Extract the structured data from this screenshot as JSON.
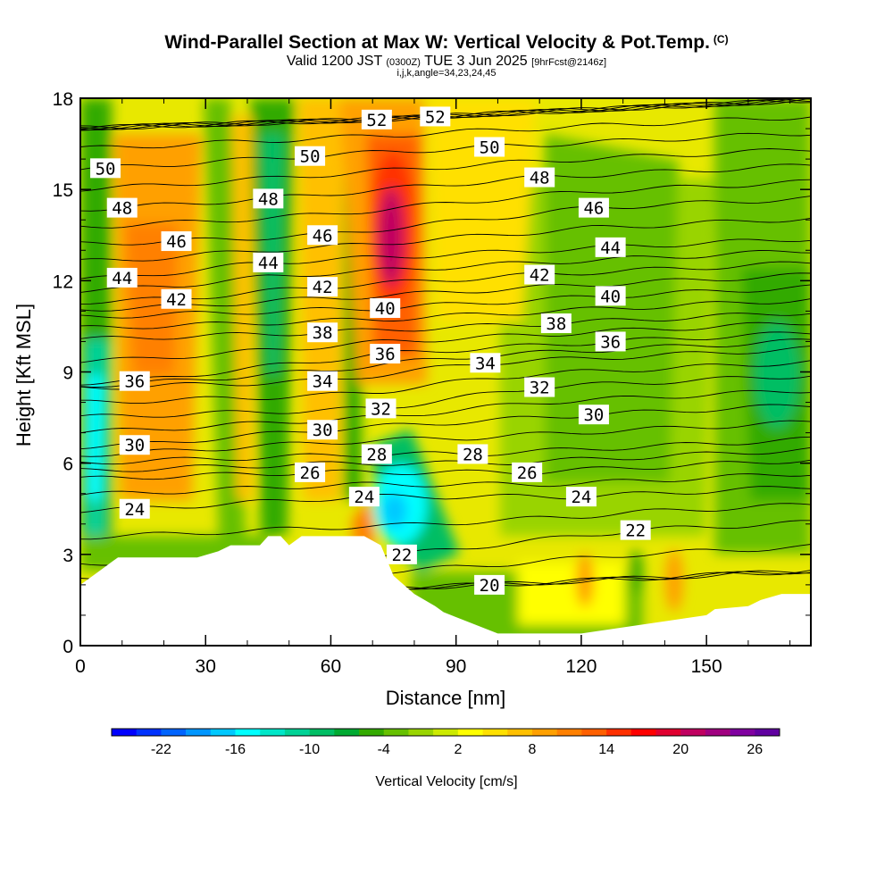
{
  "header": {
    "title": "Wind-Parallel Section at Max W: Vertical Velocity & Pot.Temp.",
    "copyright": "(C)",
    "valid_prefix": "Valid 1200 JST",
    "valid_utc": "(0300Z)",
    "valid_date": "TUE 3 Jun 2025",
    "forecast": "[9hrFcst@2146z]",
    "indices": "i,j,k,angle=34,23,24,45"
  },
  "chart_data": {
    "type": "heatmap",
    "xlabel": "Distance [nm]",
    "ylabel": "Height [Kft MSL]",
    "xlim": [
      0,
      175
    ],
    "ylim": [
      0,
      18
    ],
    "x_ticks": [
      0,
      30,
      60,
      90,
      120,
      150
    ],
    "y_ticks": [
      0,
      3,
      6,
      9,
      12,
      15,
      18
    ],
    "colorbar": {
      "label": "Vertical Velocity [cm/s]",
      "tick_labels": [
        -22,
        -16,
        -10,
        -4,
        2,
        8,
        14,
        20,
        26
      ],
      "colors": [
        "#0000ff",
        "#0032ff",
        "#0064ff",
        "#0096ff",
        "#00c8ff",
        "#00ffff",
        "#00e6c8",
        "#00d296",
        "#00be64",
        "#00aa32",
        "#33aa00",
        "#66c000",
        "#99d400",
        "#ccea00",
        "#ffff00",
        "#ffe000",
        "#ffc000",
        "#ffa000",
        "#ff8000",
        "#ff6000",
        "#ff3000",
        "#ff0000",
        "#e00030",
        "#c00060",
        "#a00080",
        "#8000a0",
        "#6000a0"
      ]
    },
    "theta_contours": {
      "interval": 1,
      "labels": [
        {
          "value": 52,
          "x": 71,
          "y": 17.3
        },
        {
          "value": 52,
          "x": 85,
          "y": 17.4
        },
        {
          "value": 50,
          "x": 6,
          "y": 15.7
        },
        {
          "value": 50,
          "x": 55,
          "y": 16.1
        },
        {
          "value": 50,
          "x": 98,
          "y": 16.4
        },
        {
          "value": 48,
          "x": 10,
          "y": 14.4
        },
        {
          "value": 48,
          "x": 45,
          "y": 14.7
        },
        {
          "value": 48,
          "x": 110,
          "y": 15.4
        },
        {
          "value": 46,
          "x": 23,
          "y": 13.3
        },
        {
          "value": 46,
          "x": 58,
          "y": 13.5
        },
        {
          "value": 46,
          "x": 123,
          "y": 14.4
        },
        {
          "value": 44,
          "x": 10,
          "y": 12.1
        },
        {
          "value": 44,
          "x": 45,
          "y": 12.6
        },
        {
          "value": 44,
          "x": 127,
          "y": 13.1
        },
        {
          "value": 42,
          "x": 23,
          "y": 11.4
        },
        {
          "value": 42,
          "x": 58,
          "y": 11.8
        },
        {
          "value": 42,
          "x": 110,
          "y": 12.2
        },
        {
          "value": 40,
          "x": 73,
          "y": 11.1
        },
        {
          "value": 40,
          "x": 127,
          "y": 11.5
        },
        {
          "value": 38,
          "x": 58,
          "y": 10.3
        },
        {
          "value": 38,
          "x": 114,
          "y": 10.6
        },
        {
          "value": 36,
          "x": 13,
          "y": 8.7
        },
        {
          "value": 36,
          "x": 73,
          "y": 9.6
        },
        {
          "value": 36,
          "x": 127,
          "y": 10.0
        },
        {
          "value": 34,
          "x": 58,
          "y": 8.7
        },
        {
          "value": 34,
          "x": 97,
          "y": 9.3
        },
        {
          "value": 32,
          "x": 72,
          "y": 7.8
        },
        {
          "value": 32,
          "x": 110,
          "y": 8.5
        },
        {
          "value": 30,
          "x": 13,
          "y": 6.6
        },
        {
          "value": 30,
          "x": 58,
          "y": 7.1
        },
        {
          "value": 30,
          "x": 123,
          "y": 7.6
        },
        {
          "value": 28,
          "x": 71,
          "y": 6.3
        },
        {
          "value": 28,
          "x": 94,
          "y": 6.3
        },
        {
          "value": 26,
          "x": 55,
          "y": 5.7
        },
        {
          "value": 26,
          "x": 107,
          "y": 5.7
        },
        {
          "value": 24,
          "x": 13,
          "y": 4.5
        },
        {
          "value": 24,
          "x": 68,
          "y": 4.9
        },
        {
          "value": 24,
          "x": 120,
          "y": 4.9
        },
        {
          "value": 22,
          "x": 77,
          "y": 3.0
        },
        {
          "value": 22,
          "x": 133,
          "y": 3.8
        },
        {
          "value": 20,
          "x": 98,
          "y": 2.0
        }
      ]
    },
    "terrain_kft": {
      "x": [
        0,
        3,
        5,
        7,
        9,
        13,
        28,
        33,
        36,
        40,
        43,
        45,
        48,
        50,
        53,
        57,
        62,
        68,
        72,
        75,
        80,
        85,
        87,
        100,
        120,
        150,
        152,
        160,
        163,
        168,
        175
      ],
      "y": [
        2.0,
        2.3,
        2.5,
        2.7,
        2.9,
        2.9,
        2.9,
        3.1,
        3.3,
        3.3,
        3.3,
        3.6,
        3.6,
        3.3,
        3.6,
        3.6,
        3.6,
        3.6,
        3.3,
        2.3,
        1.7,
        1.3,
        1.1,
        0.4,
        0.4,
        1.0,
        1.2,
        1.3,
        1.5,
        1.7,
        1.7
      ]
    }
  }
}
